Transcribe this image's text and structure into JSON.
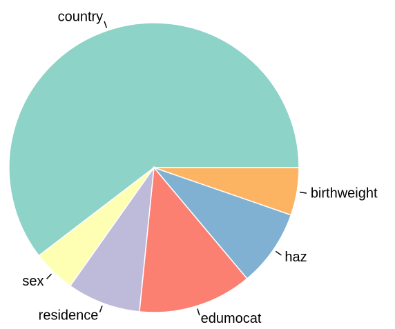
{
  "chart_data": {
    "type": "pie",
    "categories": [
      "country",
      "sex",
      "residence",
      "edumocat",
      "haz",
      "birthweight"
    ],
    "values": [
      60.4,
      4.8,
      8.2,
      12.7,
      8.6,
      5.3
    ],
    "colors": [
      "#8dd3c7",
      "#ffffb3",
      "#bebada",
      "#fb8072",
      "#80b1d3",
      "#fdb462"
    ]
  }
}
